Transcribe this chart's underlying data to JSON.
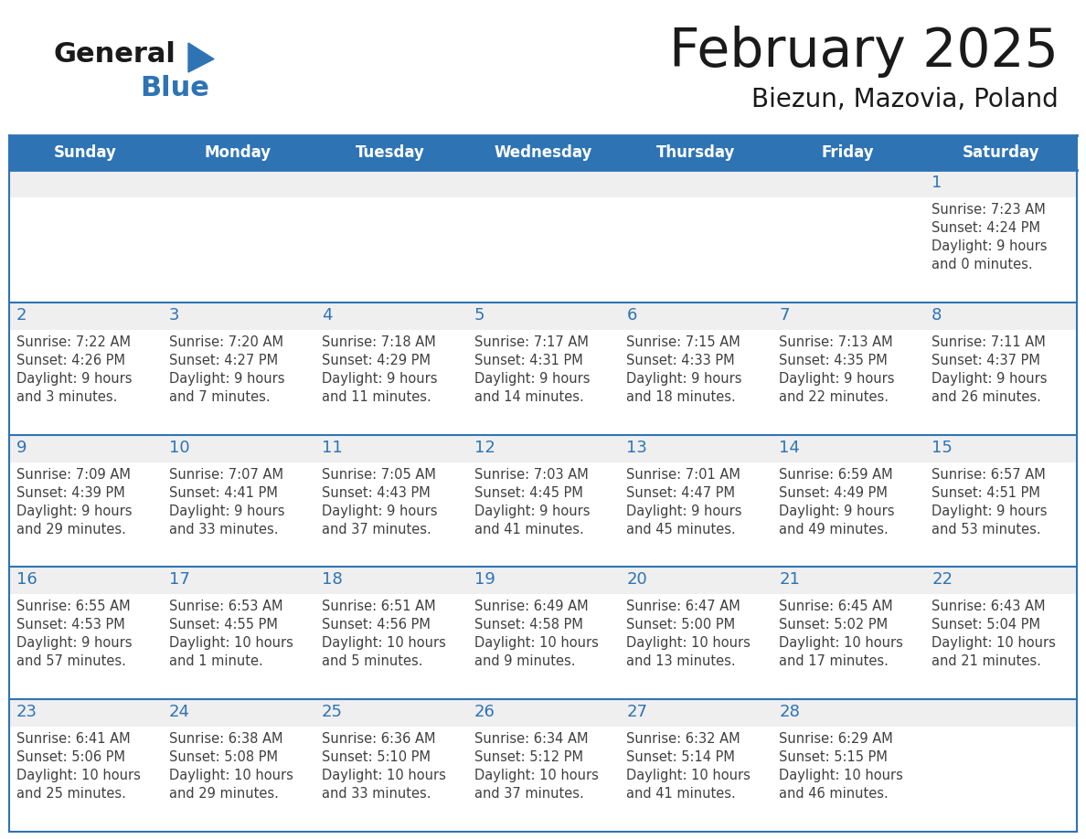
{
  "title": "February 2025",
  "subtitle": "Biezun, Mazovia, Poland",
  "days_of_week": [
    "Sunday",
    "Monday",
    "Tuesday",
    "Wednesday",
    "Thursday",
    "Friday",
    "Saturday"
  ],
  "header_bg": "#2E74B5",
  "header_text": "#FFFFFF",
  "cell_border": "#2E74B5",
  "day_num_color": "#2E74B5",
  "cell_text_color": "#404040",
  "day_bg_color": "#EFEFEF",
  "cell_bg_color": "#FFFFFF",
  "title_color": "#1a1a1a",
  "subtitle_color": "#1a1a1a",
  "logo_general_color": "#1a1a1a",
  "logo_blue_color": "#2E74B5",
  "logo_triangle_color": "#2E74B5",
  "calendar_data": [
    [
      null,
      null,
      null,
      null,
      null,
      null,
      1
    ],
    [
      2,
      3,
      4,
      5,
      6,
      7,
      8
    ],
    [
      9,
      10,
      11,
      12,
      13,
      14,
      15
    ],
    [
      16,
      17,
      18,
      19,
      20,
      21,
      22
    ],
    [
      23,
      24,
      25,
      26,
      27,
      28,
      null
    ]
  ],
  "sunrise_data": {
    "1": "7:23 AM",
    "2": "7:22 AM",
    "3": "7:20 AM",
    "4": "7:18 AM",
    "5": "7:17 AM",
    "6": "7:15 AM",
    "7": "7:13 AM",
    "8": "7:11 AM",
    "9": "7:09 AM",
    "10": "7:07 AM",
    "11": "7:05 AM",
    "12": "7:03 AM",
    "13": "7:01 AM",
    "14": "6:59 AM",
    "15": "6:57 AM",
    "16": "6:55 AM",
    "17": "6:53 AM",
    "18": "6:51 AM",
    "19": "6:49 AM",
    "20": "6:47 AM",
    "21": "6:45 AM",
    "22": "6:43 AM",
    "23": "6:41 AM",
    "24": "6:38 AM",
    "25": "6:36 AM",
    "26": "6:34 AM",
    "27": "6:32 AM",
    "28": "6:29 AM"
  },
  "sunset_data": {
    "1": "4:24 PM",
    "2": "4:26 PM",
    "3": "4:27 PM",
    "4": "4:29 PM",
    "5": "4:31 PM",
    "6": "4:33 PM",
    "7": "4:35 PM",
    "8": "4:37 PM",
    "9": "4:39 PM",
    "10": "4:41 PM",
    "11": "4:43 PM",
    "12": "4:45 PM",
    "13": "4:47 PM",
    "14": "4:49 PM",
    "15": "4:51 PM",
    "16": "4:53 PM",
    "17": "4:55 PM",
    "18": "4:56 PM",
    "19": "4:58 PM",
    "20": "5:00 PM",
    "21": "5:02 PM",
    "22": "5:04 PM",
    "23": "5:06 PM",
    "24": "5:08 PM",
    "25": "5:10 PM",
    "26": "5:12 PM",
    "27": "5:14 PM",
    "28": "5:15 PM"
  },
  "daylight_hours": {
    "1": "9 hours",
    "2": "9 hours",
    "3": "9 hours",
    "4": "9 hours",
    "5": "9 hours",
    "6": "9 hours",
    "7": "9 hours",
    "8": "9 hours",
    "9": "9 hours",
    "10": "9 hours",
    "11": "9 hours",
    "12": "9 hours",
    "13": "9 hours",
    "14": "9 hours",
    "15": "9 hours",
    "16": "9 hours",
    "17": "10 hours",
    "18": "10 hours",
    "19": "10 hours",
    "20": "10 hours",
    "21": "10 hours",
    "22": "10 hours",
    "23": "10 hours",
    "24": "10 hours",
    "25": "10 hours",
    "26": "10 hours",
    "27": "10 hours",
    "28": "10 hours"
  },
  "daylight_minutes": {
    "1": "and 0 minutes.",
    "2": "and 3 minutes.",
    "3": "and 7 minutes.",
    "4": "and 11 minutes.",
    "5": "and 14 minutes.",
    "6": "and 18 minutes.",
    "7": "and 22 minutes.",
    "8": "and 26 minutes.",
    "9": "and 29 minutes.",
    "10": "and 33 minutes.",
    "11": "and 37 minutes.",
    "12": "and 41 minutes.",
    "13": "and 45 minutes.",
    "14": "and 49 minutes.",
    "15": "and 53 minutes.",
    "16": "and 57 minutes.",
    "17": "and 1 minute.",
    "18": "and 5 minutes.",
    "19": "and 9 minutes.",
    "20": "and 13 minutes.",
    "21": "and 17 minutes.",
    "22": "and 21 minutes.",
    "23": "and 25 minutes.",
    "24": "and 29 minutes.",
    "25": "and 33 minutes.",
    "26": "and 37 minutes.",
    "27": "and 41 minutes.",
    "28": "and 46 minutes."
  }
}
